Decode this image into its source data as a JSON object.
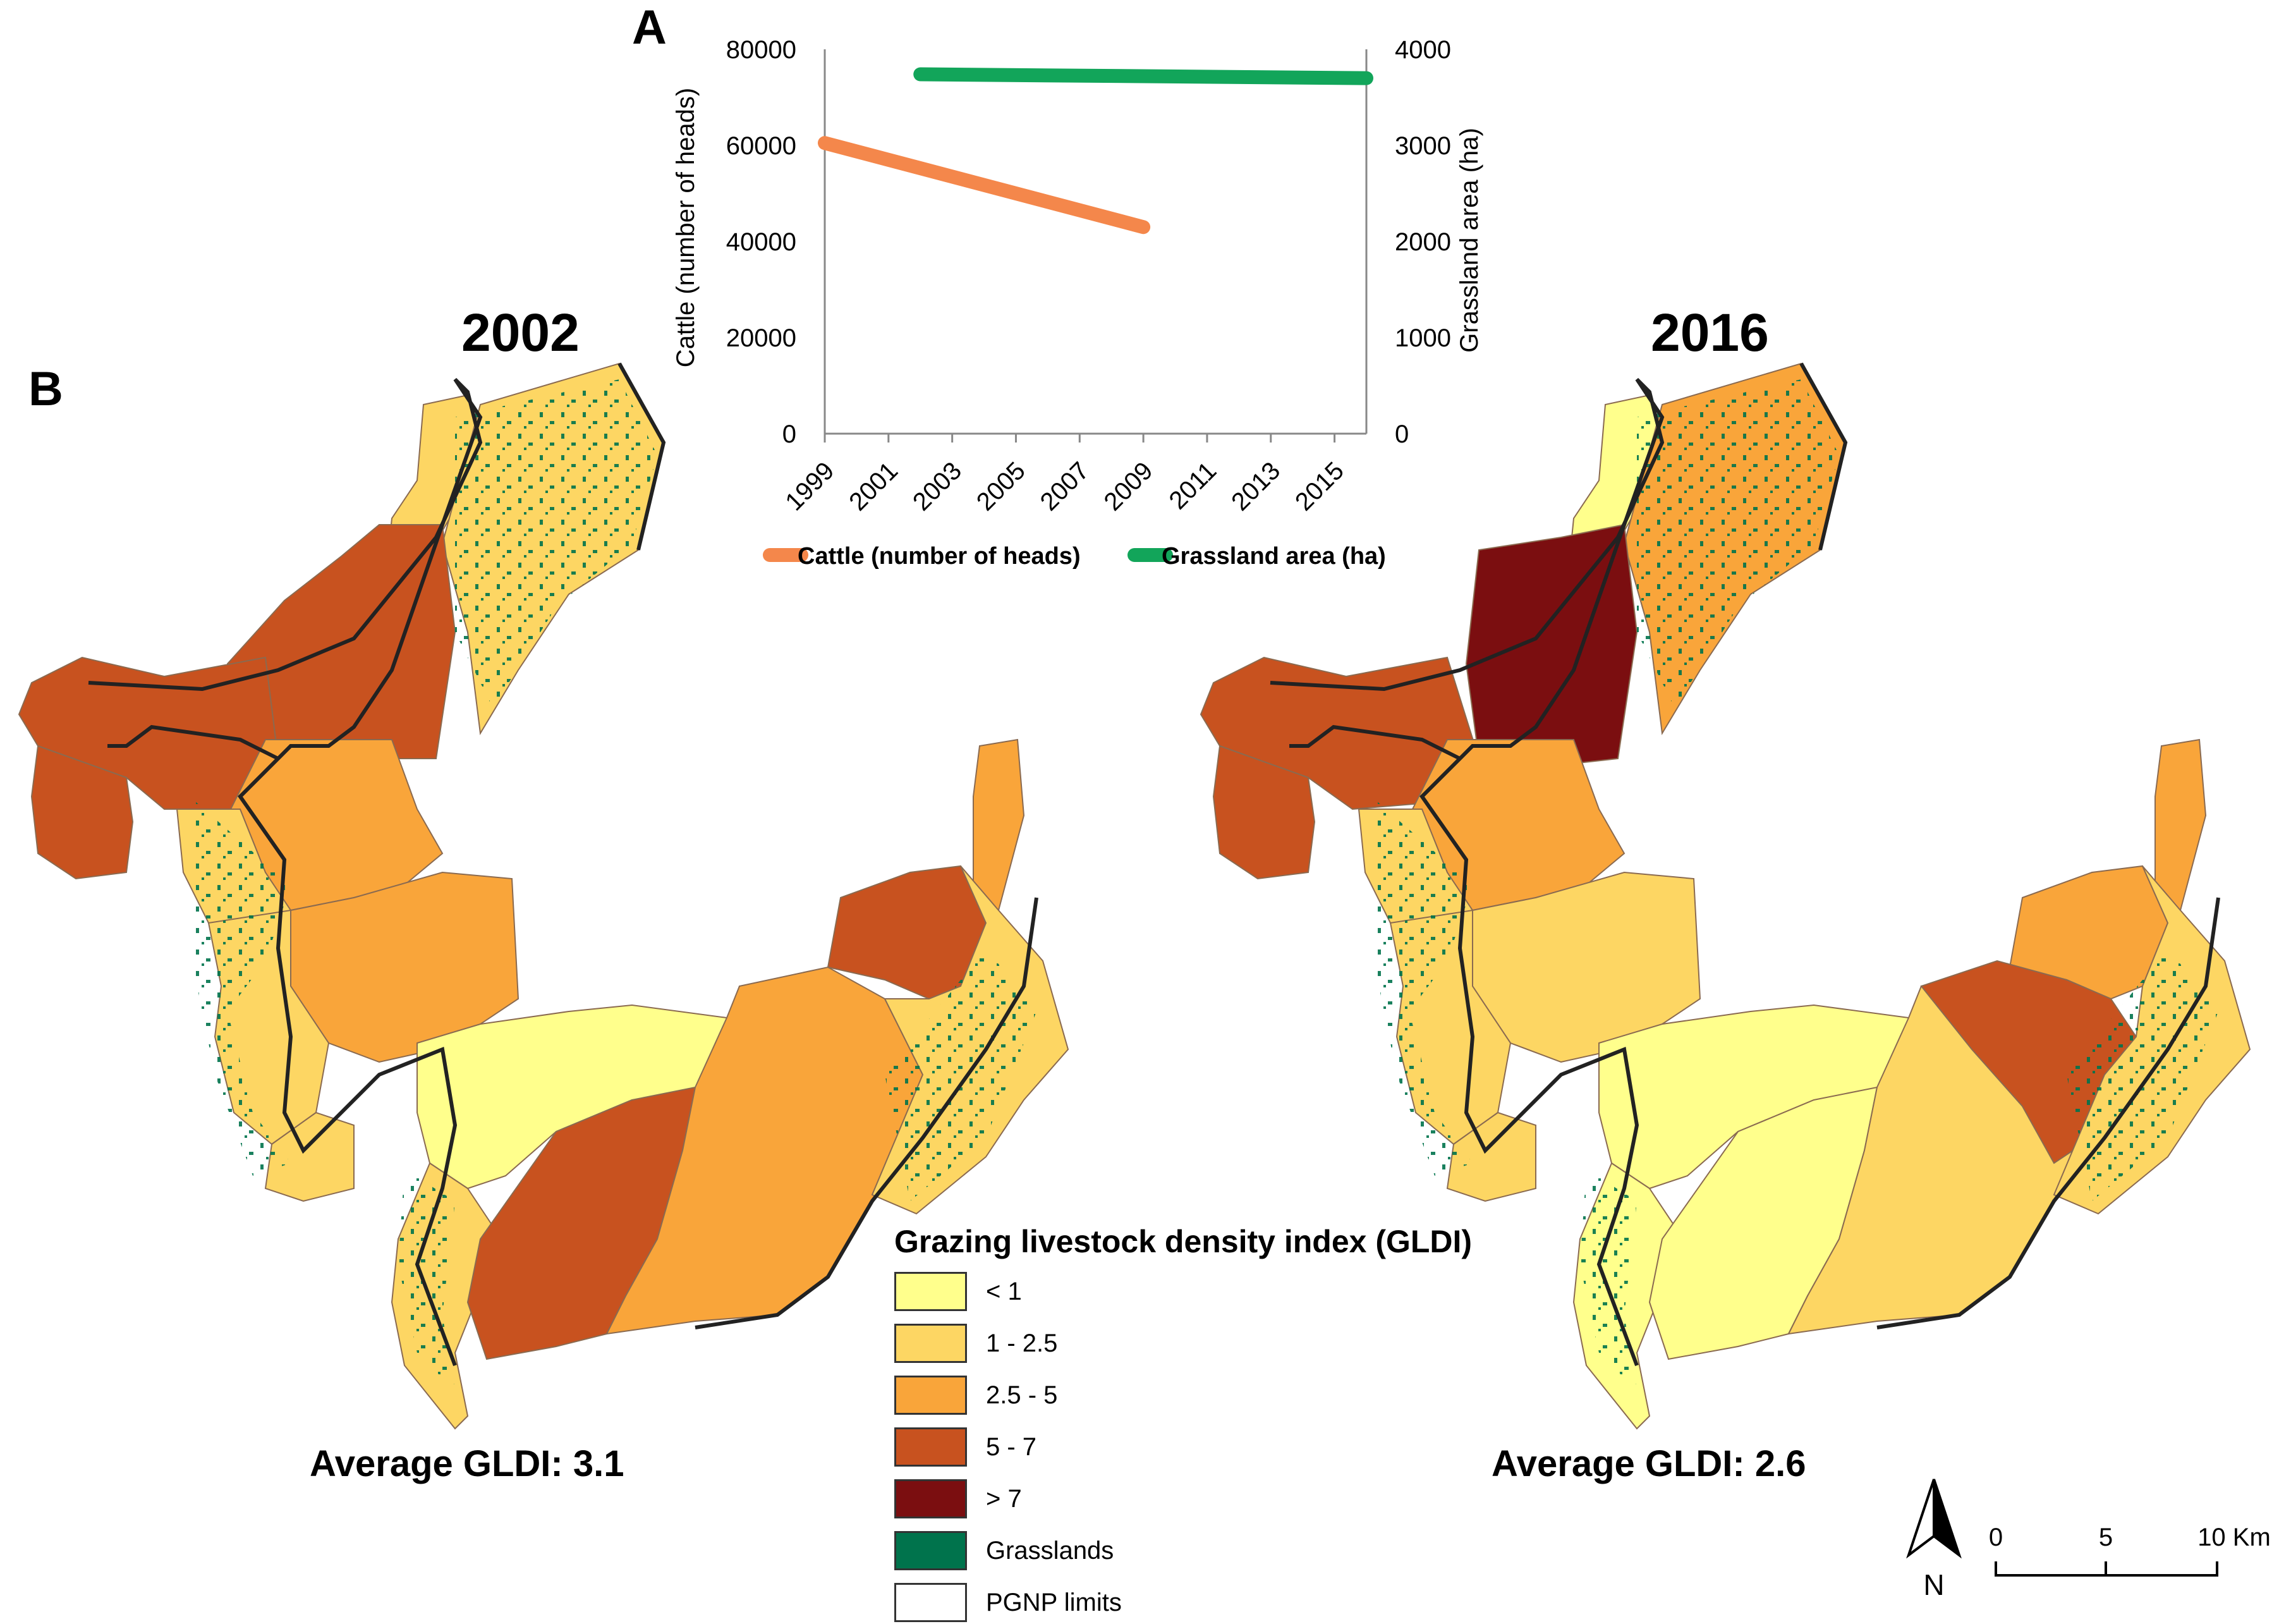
{
  "panel_labels": {
    "a": "A",
    "b": "B"
  },
  "years": {
    "left": "2002",
    "right": "2016"
  },
  "averages": {
    "left": "Average GLDI: 3.1",
    "right": "Average GLDI: 2.6"
  },
  "chart_data": {
    "type": "line",
    "title": "",
    "x_tick_labels": [
      "1999",
      "2001",
      "2003",
      "2005",
      "2007",
      "2009",
      "2011",
      "2013",
      "2015"
    ],
    "xlim": [
      1999,
      2016
    ],
    "ylabel_left": "Cattle (number of heads)",
    "ylabel_right": "Grassland area (ha)",
    "ylim_left": [
      0,
      80000
    ],
    "ylim_right": [
      0,
      4000
    ],
    "yticks_left": [
      "0",
      "20000",
      "40000",
      "60000",
      "80000"
    ],
    "yticks_right": [
      "0",
      "1000",
      "2000",
      "3000",
      "4000"
    ],
    "series": [
      {
        "name": "Cattle (number of heads)",
        "axis": "left",
        "color": "#F4874B",
        "x": [
          1999,
          2009
        ],
        "values": [
          60500,
          43000
        ]
      },
      {
        "name": "Grassland area (ha)",
        "axis": "right",
        "color": "#12A55A",
        "x": [
          2002,
          2016
        ],
        "values": [
          3740,
          3700
        ]
      }
    ],
    "legend": "bottom"
  },
  "map_legend": {
    "title": "Grazing livestock density index (GLDI)",
    "items": [
      {
        "label": "< 1",
        "color": "#FFFF8C"
      },
      {
        "label": "1 - 2.5",
        "color": "#FDD663"
      },
      {
        "label": "2.5 - 5",
        "color": "#F9A53A"
      },
      {
        "label": "5 - 7",
        "color": "#C8521F"
      },
      {
        "label": "> 7",
        "color": "#7B0E10"
      },
      {
        "label": "Grasslands",
        "color": "#00734C"
      },
      {
        "label": "PGNP limits",
        "color": "#FFFFFF"
      }
    ]
  },
  "north_arrow": {
    "label": "N"
  },
  "scale_bar": {
    "labels": [
      "0",
      "5",
      "10 Km"
    ]
  }
}
